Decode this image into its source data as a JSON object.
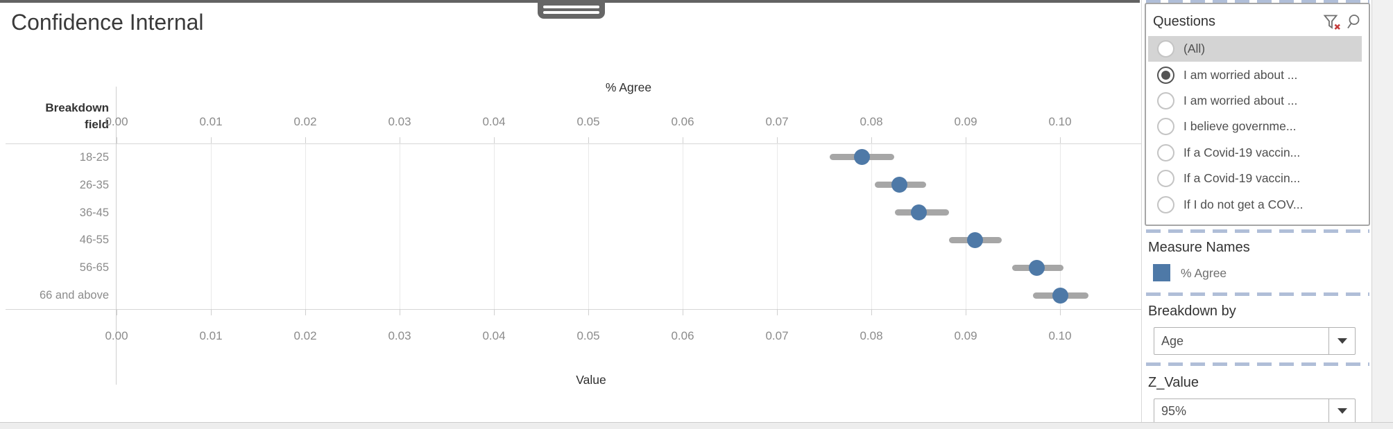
{
  "title": "Confidence Internal",
  "chart": {
    "top_axis_title": "% Agree",
    "bottom_axis_title": "Value",
    "row_header_line1": "Breakdown",
    "row_header_line2": "field"
  },
  "chart_data": {
    "type": "scatter",
    "subtype": "dot-with-confidence-interval",
    "orientation": "horizontal",
    "title": "Confidence Internal",
    "xlabel_top": "% Agree",
    "xlabel_bottom": "Value",
    "ylabel": "Breakdown field",
    "categories": [
      "18-25",
      "26-35",
      "36-45",
      "46-55",
      "56-65",
      "66 and above"
    ],
    "series": [
      {
        "name": "% Agree",
        "values": [
          0.079,
          0.083,
          0.085,
          0.091,
          0.0975,
          0.1
        ]
      }
    ],
    "ci_low": [
      0.0756,
      0.0804,
      0.0825,
      0.0882,
      0.0949,
      0.0971
    ],
    "ci_high": [
      0.0824,
      0.0858,
      0.0882,
      0.0938,
      0.1004,
      0.103
    ],
    "xlim": [
      0,
      0.109
    ],
    "xticks": [
      "0.00",
      "0.01",
      "0.02",
      "0.03",
      "0.04",
      "0.05",
      "0.06",
      "0.07",
      "0.08",
      "0.09",
      "0.10"
    ],
    "x_tick_interval": 0.01,
    "grid": true,
    "legend_position": "right-sidebar",
    "dot_color": "#4e79a7",
    "bar_color": "#a6a6a6"
  },
  "sidebar": {
    "questions": {
      "title": "Questions",
      "clear_filter_icon": "funnel-with-red-x",
      "search_icon": "magnifier",
      "options": [
        {
          "label": "(All)",
          "selected": false,
          "highlighted": true
        },
        {
          "label": "I am worried about ...",
          "selected": true,
          "highlighted": false
        },
        {
          "label": "I am worried about ...",
          "selected": false,
          "highlighted": false
        },
        {
          "label": "I believe governme...",
          "selected": false,
          "highlighted": false
        },
        {
          "label": "If a Covid-19 vaccin...",
          "selected": false,
          "highlighted": false
        },
        {
          "label": "If a Covid-19 vaccin...",
          "selected": false,
          "highlighted": false
        },
        {
          "label": "If I do not get a COV...",
          "selected": false,
          "highlighted": false
        }
      ]
    },
    "measure_names": {
      "title": "Measure Names",
      "legend": [
        {
          "label": "% Agree",
          "color": "#4e79a7"
        }
      ]
    },
    "breakdown_by": {
      "title": "Breakdown by",
      "value": "Age"
    },
    "z_value": {
      "title": "Z_Value",
      "value": "95%"
    }
  },
  "colors": {
    "accent_blue": "#4e79a7",
    "ci_bar_gray": "#a6a6a6",
    "highlight_row": "#d4d4d4",
    "dashed_separator": "#b0bed8",
    "top_bar": "#636363"
  }
}
